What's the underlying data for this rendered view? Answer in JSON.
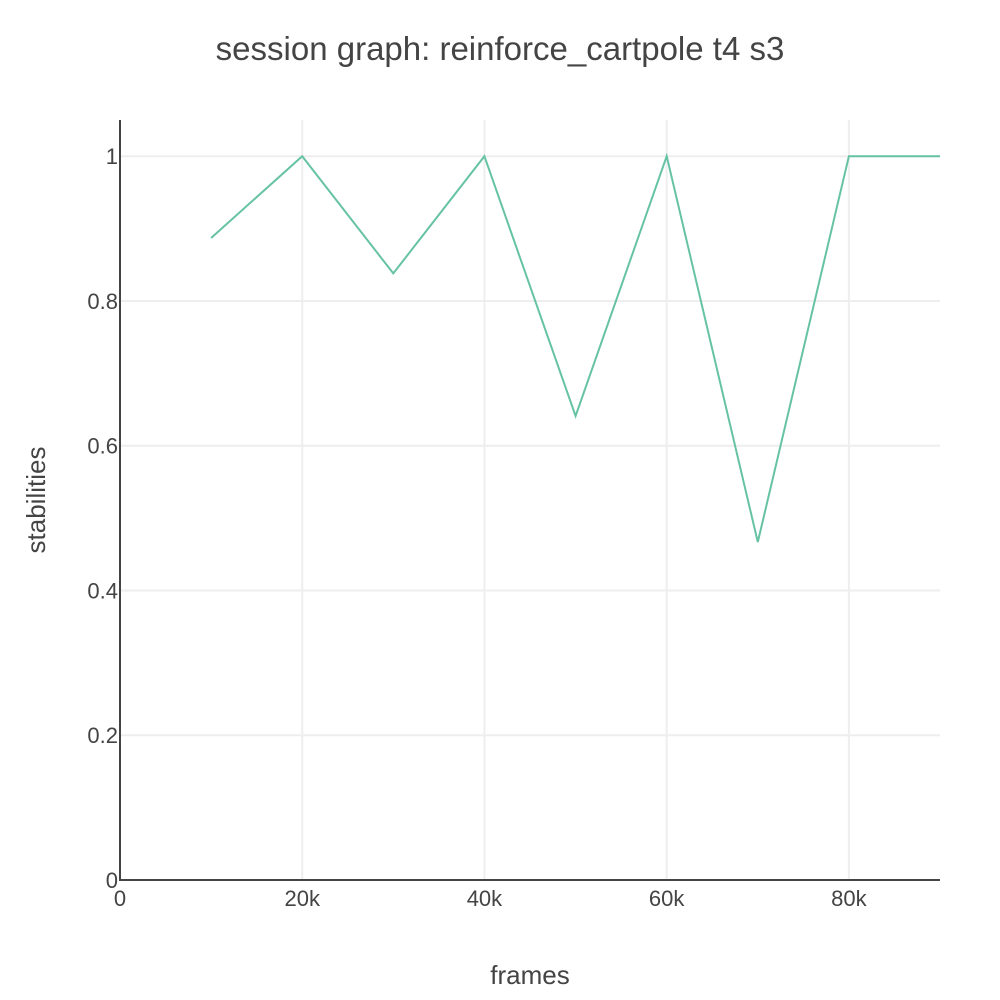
{
  "chart_data": {
    "type": "line",
    "title": "session graph: reinforce_cartpole t4 s3",
    "xlabel": "frames",
    "ylabel": "stabilities",
    "xlim": [
      0,
      90000
    ],
    "ylim": [
      0,
      1.05
    ],
    "x_ticks": [
      {
        "value": 0,
        "label": "0"
      },
      {
        "value": 20000,
        "label": "20k"
      },
      {
        "value": 40000,
        "label": "40k"
      },
      {
        "value": 60000,
        "label": "60k"
      },
      {
        "value": 80000,
        "label": "80k"
      }
    ],
    "y_ticks": [
      {
        "value": 0,
        "label": "0"
      },
      {
        "value": 0.2,
        "label": "0.2"
      },
      {
        "value": 0.4,
        "label": "0.4"
      },
      {
        "value": 0.6,
        "label": "0.6"
      },
      {
        "value": 0.8,
        "label": "0.8"
      },
      {
        "value": 1,
        "label": "1"
      }
    ],
    "grid": true,
    "legend": "none",
    "series": [
      {
        "color": "#66c2a5",
        "x": [
          10000,
          20000,
          30000,
          40000,
          50000,
          60000,
          70000,
          80000,
          90000
        ],
        "y": [
          0.887,
          1.0,
          0.838,
          1.0,
          0.641,
          1.0,
          0.467,
          1.0,
          1.0
        ]
      }
    ]
  }
}
